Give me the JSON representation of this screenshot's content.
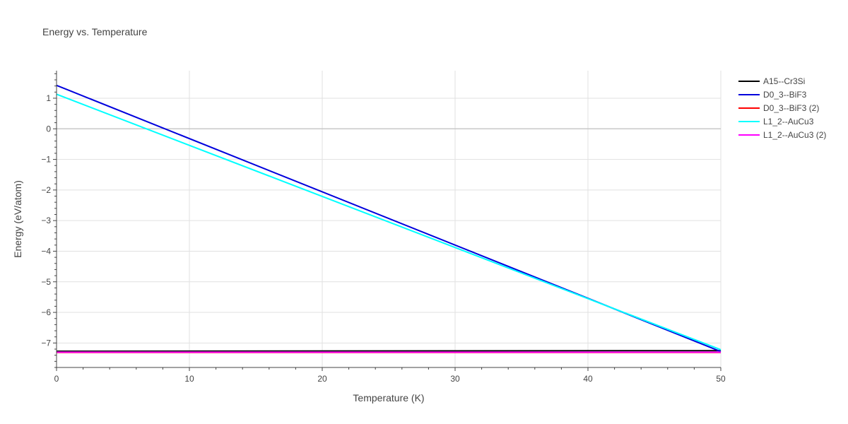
{
  "chart_data": {
    "type": "line",
    "title": "Energy vs. Temperature",
    "xlabel": "Temperature (K)",
    "ylabel": "Energy (eV/atom)",
    "xlim": [
      0,
      50
    ],
    "ylim": [
      -7.8,
      1.9
    ],
    "x_ticks": [
      0,
      10,
      20,
      30,
      40,
      50
    ],
    "y_ticks": [
      1,
      0,
      -1,
      -2,
      -3,
      -4,
      -5,
      -6,
      -7
    ],
    "grid": true,
    "legend_position": "top-right",
    "series": [
      {
        "name": "A15--Cr3Si",
        "color": "#000000",
        "x": [
          0,
          50
        ],
        "y": [
          -7.27,
          -7.25
        ]
      },
      {
        "name": "D0_3--BiF3",
        "color": "#0000dd",
        "x": [
          0,
          50
        ],
        "y": [
          1.42,
          -7.28
        ]
      },
      {
        "name": "D0_3--BiF3 (2)",
        "color": "#ff0000",
        "x": [
          0,
          50
        ],
        "y": [
          -7.31,
          -7.31
        ]
      },
      {
        "name": "L1_2--AuCu3",
        "color": "#00ffff",
        "x": [
          0,
          50
        ],
        "y": [
          1.13,
          -7.22
        ]
      },
      {
        "name": "L1_2--AuCu3 (2)",
        "color": "#ff00ff",
        "x": [
          0,
          50
        ],
        "y": [
          -7.3,
          -7.3
        ]
      }
    ]
  }
}
